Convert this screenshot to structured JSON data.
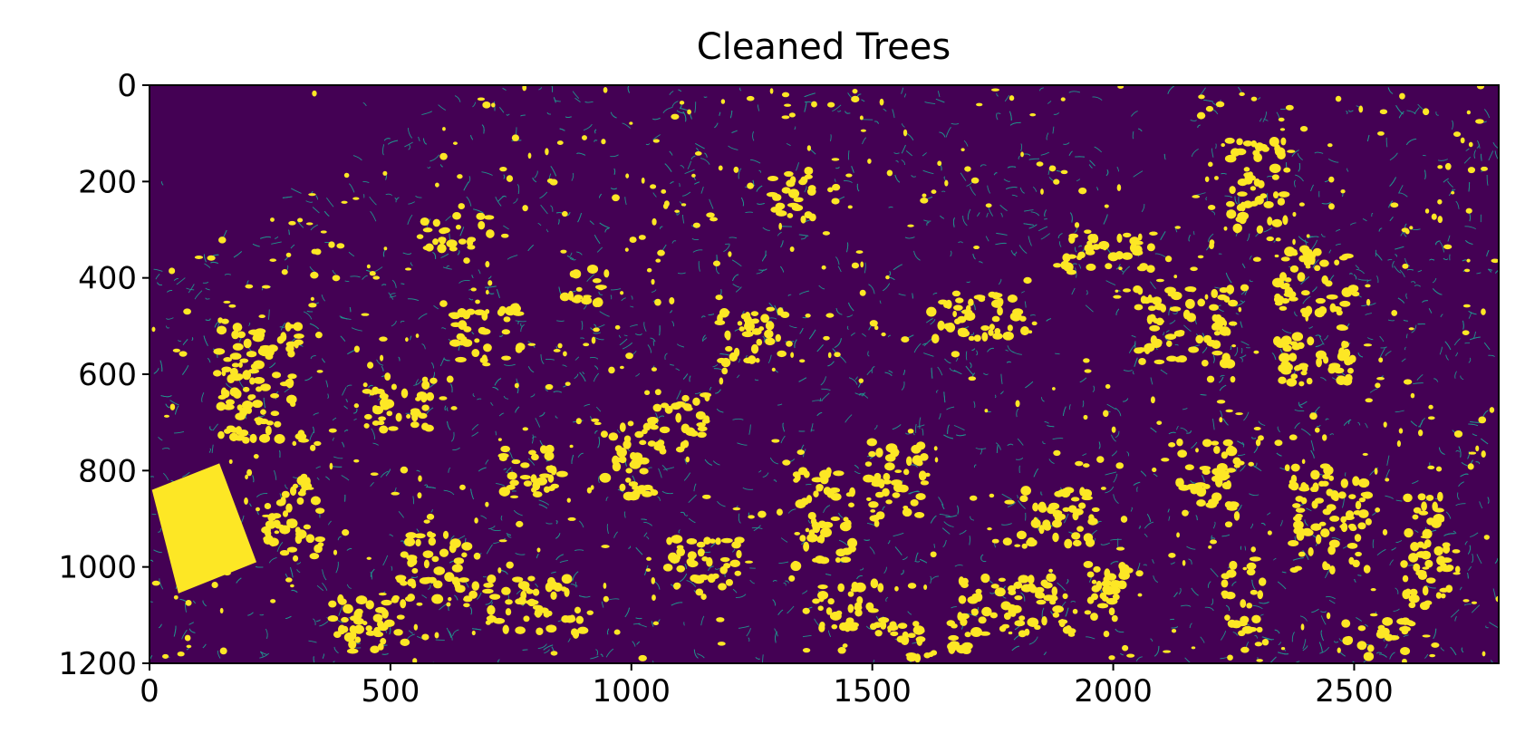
{
  "chart_data": {
    "type": "heatmap",
    "title": "Cleaned Trees",
    "xlabel": "",
    "ylabel": "",
    "xlim": [
      0,
      2800
    ],
    "ylim": [
      1200,
      0
    ],
    "x_ticks": [
      0,
      500,
      1000,
      1500,
      2000,
      2500
    ],
    "y_ticks": [
      0,
      200,
      400,
      600,
      800,
      1000,
      1200
    ],
    "x_tick_labels": [
      "0",
      "500",
      "1000",
      "1500",
      "2000",
      "2500"
    ],
    "y_tick_labels": [
      "0",
      "200",
      "400",
      "600",
      "800",
      "1000",
      "1200"
    ],
    "grid": false,
    "colormap": "viridis",
    "colors": {
      "background": "#440154",
      "tree": "#fde725",
      "edge": "#21918c"
    },
    "value_range": [
      0,
      1
    ],
    "large_region": {
      "polygon": [
        [
          5,
          840
        ],
        [
          145,
          785
        ],
        [
          222,
          990
        ],
        [
          60,
          1055
        ]
      ]
    }
  }
}
